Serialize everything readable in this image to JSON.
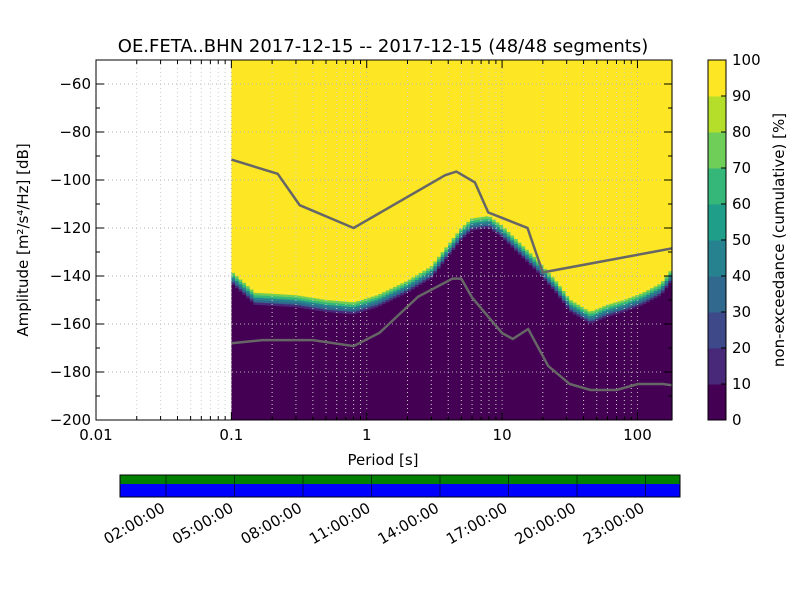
{
  "chart_data": {
    "type": "heatmap",
    "title": "OE.FETA..BHN   2017-12-15 -- 2017-12-15  (48/48 segments)",
    "xlabel": "Period [s]",
    "ylabel": "Amplitude [m²/s⁴/Hz] [dB]",
    "xscale": "log",
    "xlim": [
      0.01,
      180
    ],
    "ylim": [
      -200,
      -50
    ],
    "x_ticks": [
      {
        "value": 0.01,
        "label": "0.01"
      },
      {
        "value": 0.1,
        "label": "0.1"
      },
      {
        "value": 1,
        "label": "1"
      },
      {
        "value": 10,
        "label": "10"
      },
      {
        "value": 100,
        "label": "100"
      }
    ],
    "y_ticks": [
      {
        "value": -60,
        "label": "−60"
      },
      {
        "value": -80,
        "label": "−80"
      },
      {
        "value": -100,
        "label": "−100"
      },
      {
        "value": -120,
        "label": "−120"
      },
      {
        "value": -140,
        "label": "−140"
      },
      {
        "value": -160,
        "label": "−160"
      },
      {
        "value": -180,
        "label": "−180"
      },
      {
        "value": -200,
        "label": "−200"
      }
    ],
    "data_start_period": 0.1,
    "ppsd_lower_edge": {
      "periods": [
        0.1,
        0.15,
        0.3,
        0.5,
        0.8,
        1.2,
        2,
        3,
        4,
        5,
        6,
        8,
        10,
        14,
        18,
        25,
        32,
        45,
        60,
        80,
        110,
        150,
        180
      ],
      "db": [
        -143,
        -152,
        -153,
        -155,
        -156,
        -153,
        -147,
        -141,
        -132,
        -125,
        -121,
        -120,
        -124,
        -132,
        -138,
        -147,
        -155,
        -160,
        -157,
        -155,
        -152,
        -148,
        -142
      ]
    },
    "noise_models": [
      {
        "name": "NHNM",
        "periods": [
          0.1,
          0.22,
          0.32,
          0.8,
          3.8,
          4.6,
          6.3,
          7.9,
          15.4,
          20,
          180
        ],
        "db": [
          -91.5,
          -97.4,
          -110.5,
          -120,
          -98,
          -96.5,
          -101,
          -113.5,
          -120,
          -138.5,
          -128.5
        ]
      },
      {
        "name": "NLNM",
        "periods": [
          0.1,
          0.17,
          0.4,
          0.8,
          1.24,
          2.4,
          4.3,
          5,
          6,
          10,
          12,
          15.6,
          21.9,
          31.6,
          45,
          70,
          101,
          154,
          180
        ],
        "db": [
          -168,
          -166.7,
          -166.7,
          -169.2,
          -163.7,
          -148.6,
          -141.1,
          -141.1,
          -149,
          -163.8,
          -166.2,
          -162.1,
          -177.5,
          -185,
          -187.5,
          -187.5,
          -185,
          -185,
          -185.5
        ]
      }
    ],
    "colorbar": {
      "label": "non-exceedance (cumulative) [%]",
      "min": 0,
      "max": 100,
      "ticks": [
        "0",
        "10",
        "20",
        "30",
        "40",
        "50",
        "60",
        "70",
        "80",
        "90",
        "100"
      ],
      "colormap": [
        "#440154",
        "#482878",
        "#3e4989",
        "#31688e",
        "#26828e",
        "#1f9e89",
        "#35b779",
        "#6ece58",
        "#b5de2b",
        "#fde725"
      ]
    },
    "timeline": {
      "labels": [
        "02:00:00",
        "05:00:00",
        "08:00:00",
        "11:00:00",
        "14:00:00",
        "17:00:00",
        "20:00:00",
        "23:00:00"
      ],
      "bars": [
        {
          "name": "data coverage",
          "color": "#008000"
        },
        {
          "name": "gap check",
          "color": "#0000ff"
        }
      ]
    }
  }
}
